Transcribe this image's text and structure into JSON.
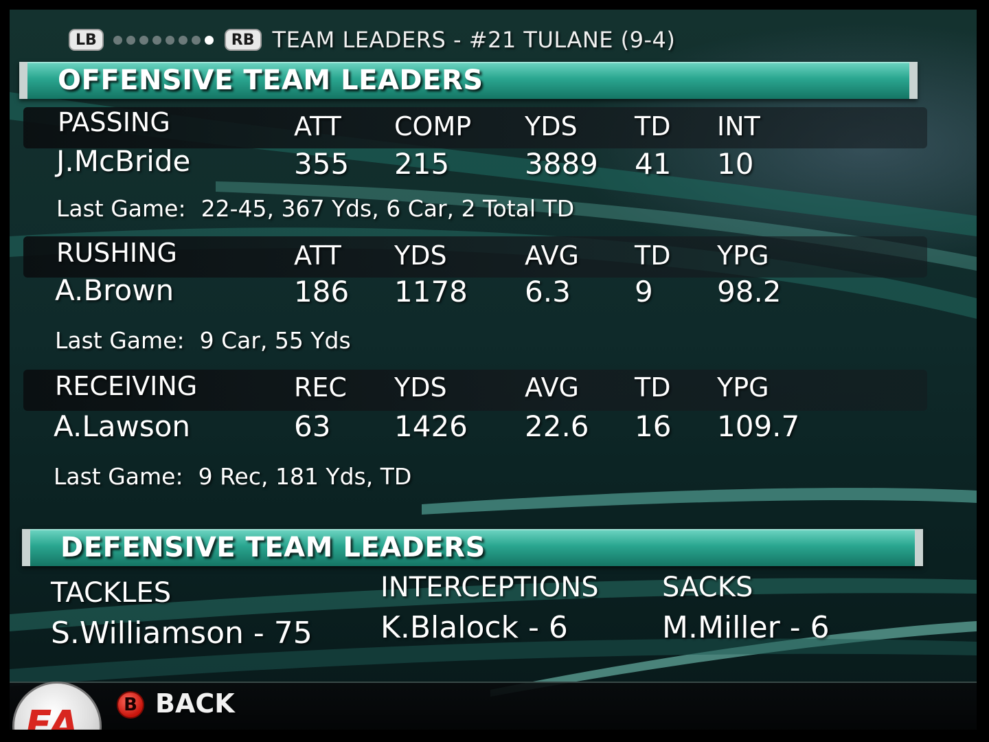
{
  "header": {
    "lb_label": "LB",
    "rb_label": "RB",
    "title": "TEAM LEADERS - #21 TULANE (9-4)",
    "page_dots": 8,
    "active_dot": 7
  },
  "offense": {
    "title": "OFFENSIVE TEAM LEADERS",
    "last_game_label": "Last Game:",
    "passing": {
      "category": "PASSING",
      "columns": [
        "ATT",
        "COMP",
        "YDS",
        "TD",
        "INT"
      ],
      "player": "J.McBride",
      "values": [
        "355",
        "215",
        "3889",
        "41",
        "10"
      ],
      "last_game": "22-45, 367 Yds, 6 Car,  2 Total TD"
    },
    "rushing": {
      "category": "RUSHING",
      "columns": [
        "ATT",
        "YDS",
        "AVG",
        "TD",
        "YPG"
      ],
      "player": "A.Brown",
      "values": [
        "186",
        "1178",
        "6.3",
        "9",
        "98.2"
      ],
      "last_game": "9 Car, 55 Yds"
    },
    "receiving": {
      "category": "RECEIVING",
      "columns": [
        "REC",
        "YDS",
        "AVG",
        "TD",
        "YPG"
      ],
      "player": "A.Lawson",
      "values": [
        "63",
        "1426",
        "22.6",
        "16",
        "109.7"
      ],
      "last_game": "9 Rec, 181 Yds, TD"
    }
  },
  "defense": {
    "title": "DEFENSIVE TEAM LEADERS",
    "tackles": {
      "category": "TACKLES",
      "leader": "S.Williamson - 75"
    },
    "interceptions": {
      "category": "INTERCEPTIONS",
      "leader": "K.Blalock - 6"
    },
    "sacks": {
      "category": "SACKS",
      "leader": "M.Miller - 6"
    }
  },
  "footer": {
    "button_glyph": "B",
    "back_label": "BACK",
    "logo_text": "EA"
  },
  "colors": {
    "banner_teal": "#2aa690",
    "background": "#0f2a2a",
    "back_button_red": "#c7140b"
  }
}
